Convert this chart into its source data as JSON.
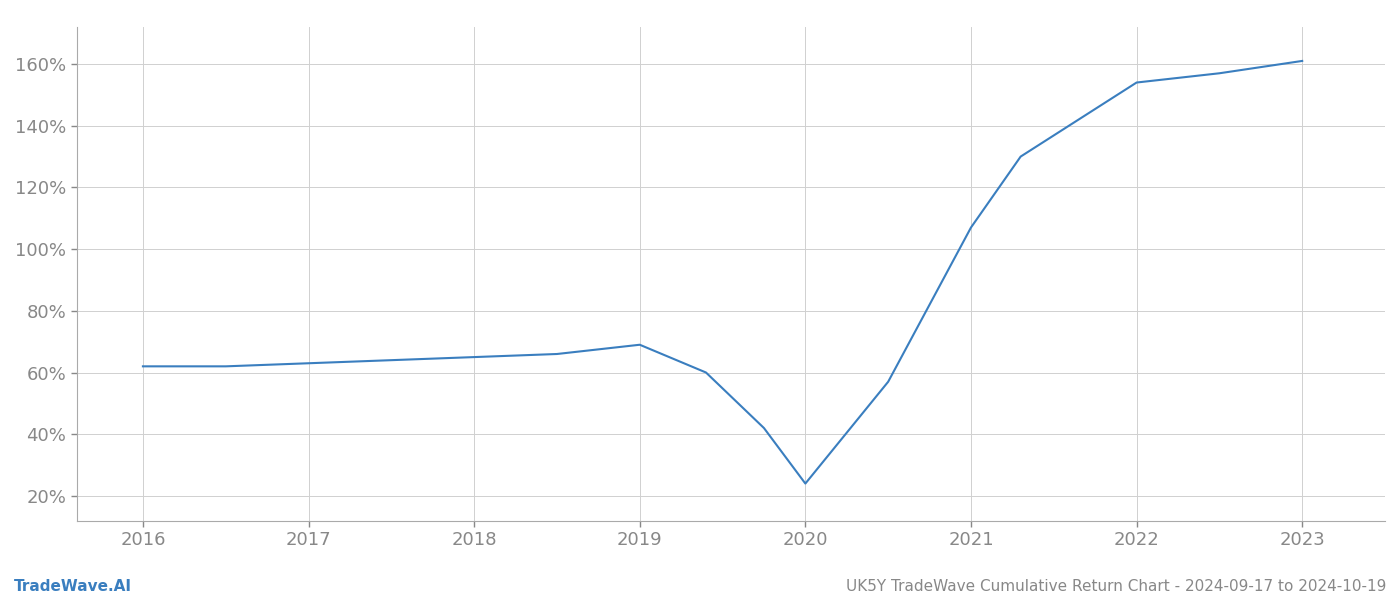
{
  "x_values": [
    2016,
    2016.5,
    2017,
    2017.5,
    2018,
    2018.5,
    2019,
    2019.4,
    2019.75,
    2020.0,
    2020.5,
    2021.0,
    2021.3,
    2022.0,
    2022.5,
    2023.0
  ],
  "y_values": [
    62,
    62,
    63,
    64,
    65,
    66,
    69,
    60,
    42,
    24,
    57,
    107,
    130,
    154,
    157,
    161
  ],
  "line_color": "#3a7ebf",
  "line_width": 1.5,
  "footer_left": "TradeWave.AI",
  "footer_right": "UK5Y TradeWave Cumulative Return Chart - 2024-09-17 to 2024-10-19",
  "xlim": [
    2015.6,
    2023.5
  ],
  "ylim": [
    12,
    172
  ],
  "yticks": [
    20,
    40,
    60,
    80,
    100,
    120,
    140,
    160
  ],
  "xticks": [
    2016,
    2017,
    2018,
    2019,
    2020,
    2021,
    2022,
    2023
  ],
  "background_color": "#ffffff",
  "grid_color": "#d0d0d0",
  "tick_color": "#888888",
  "left_spine_color": "#aaaaaa",
  "bottom_spine_color": "#aaaaaa",
  "footer_left_color": "#3a7ebf",
  "footer_right_color": "#888888",
  "footer_fontsize": 11,
  "tick_fontsize": 13
}
